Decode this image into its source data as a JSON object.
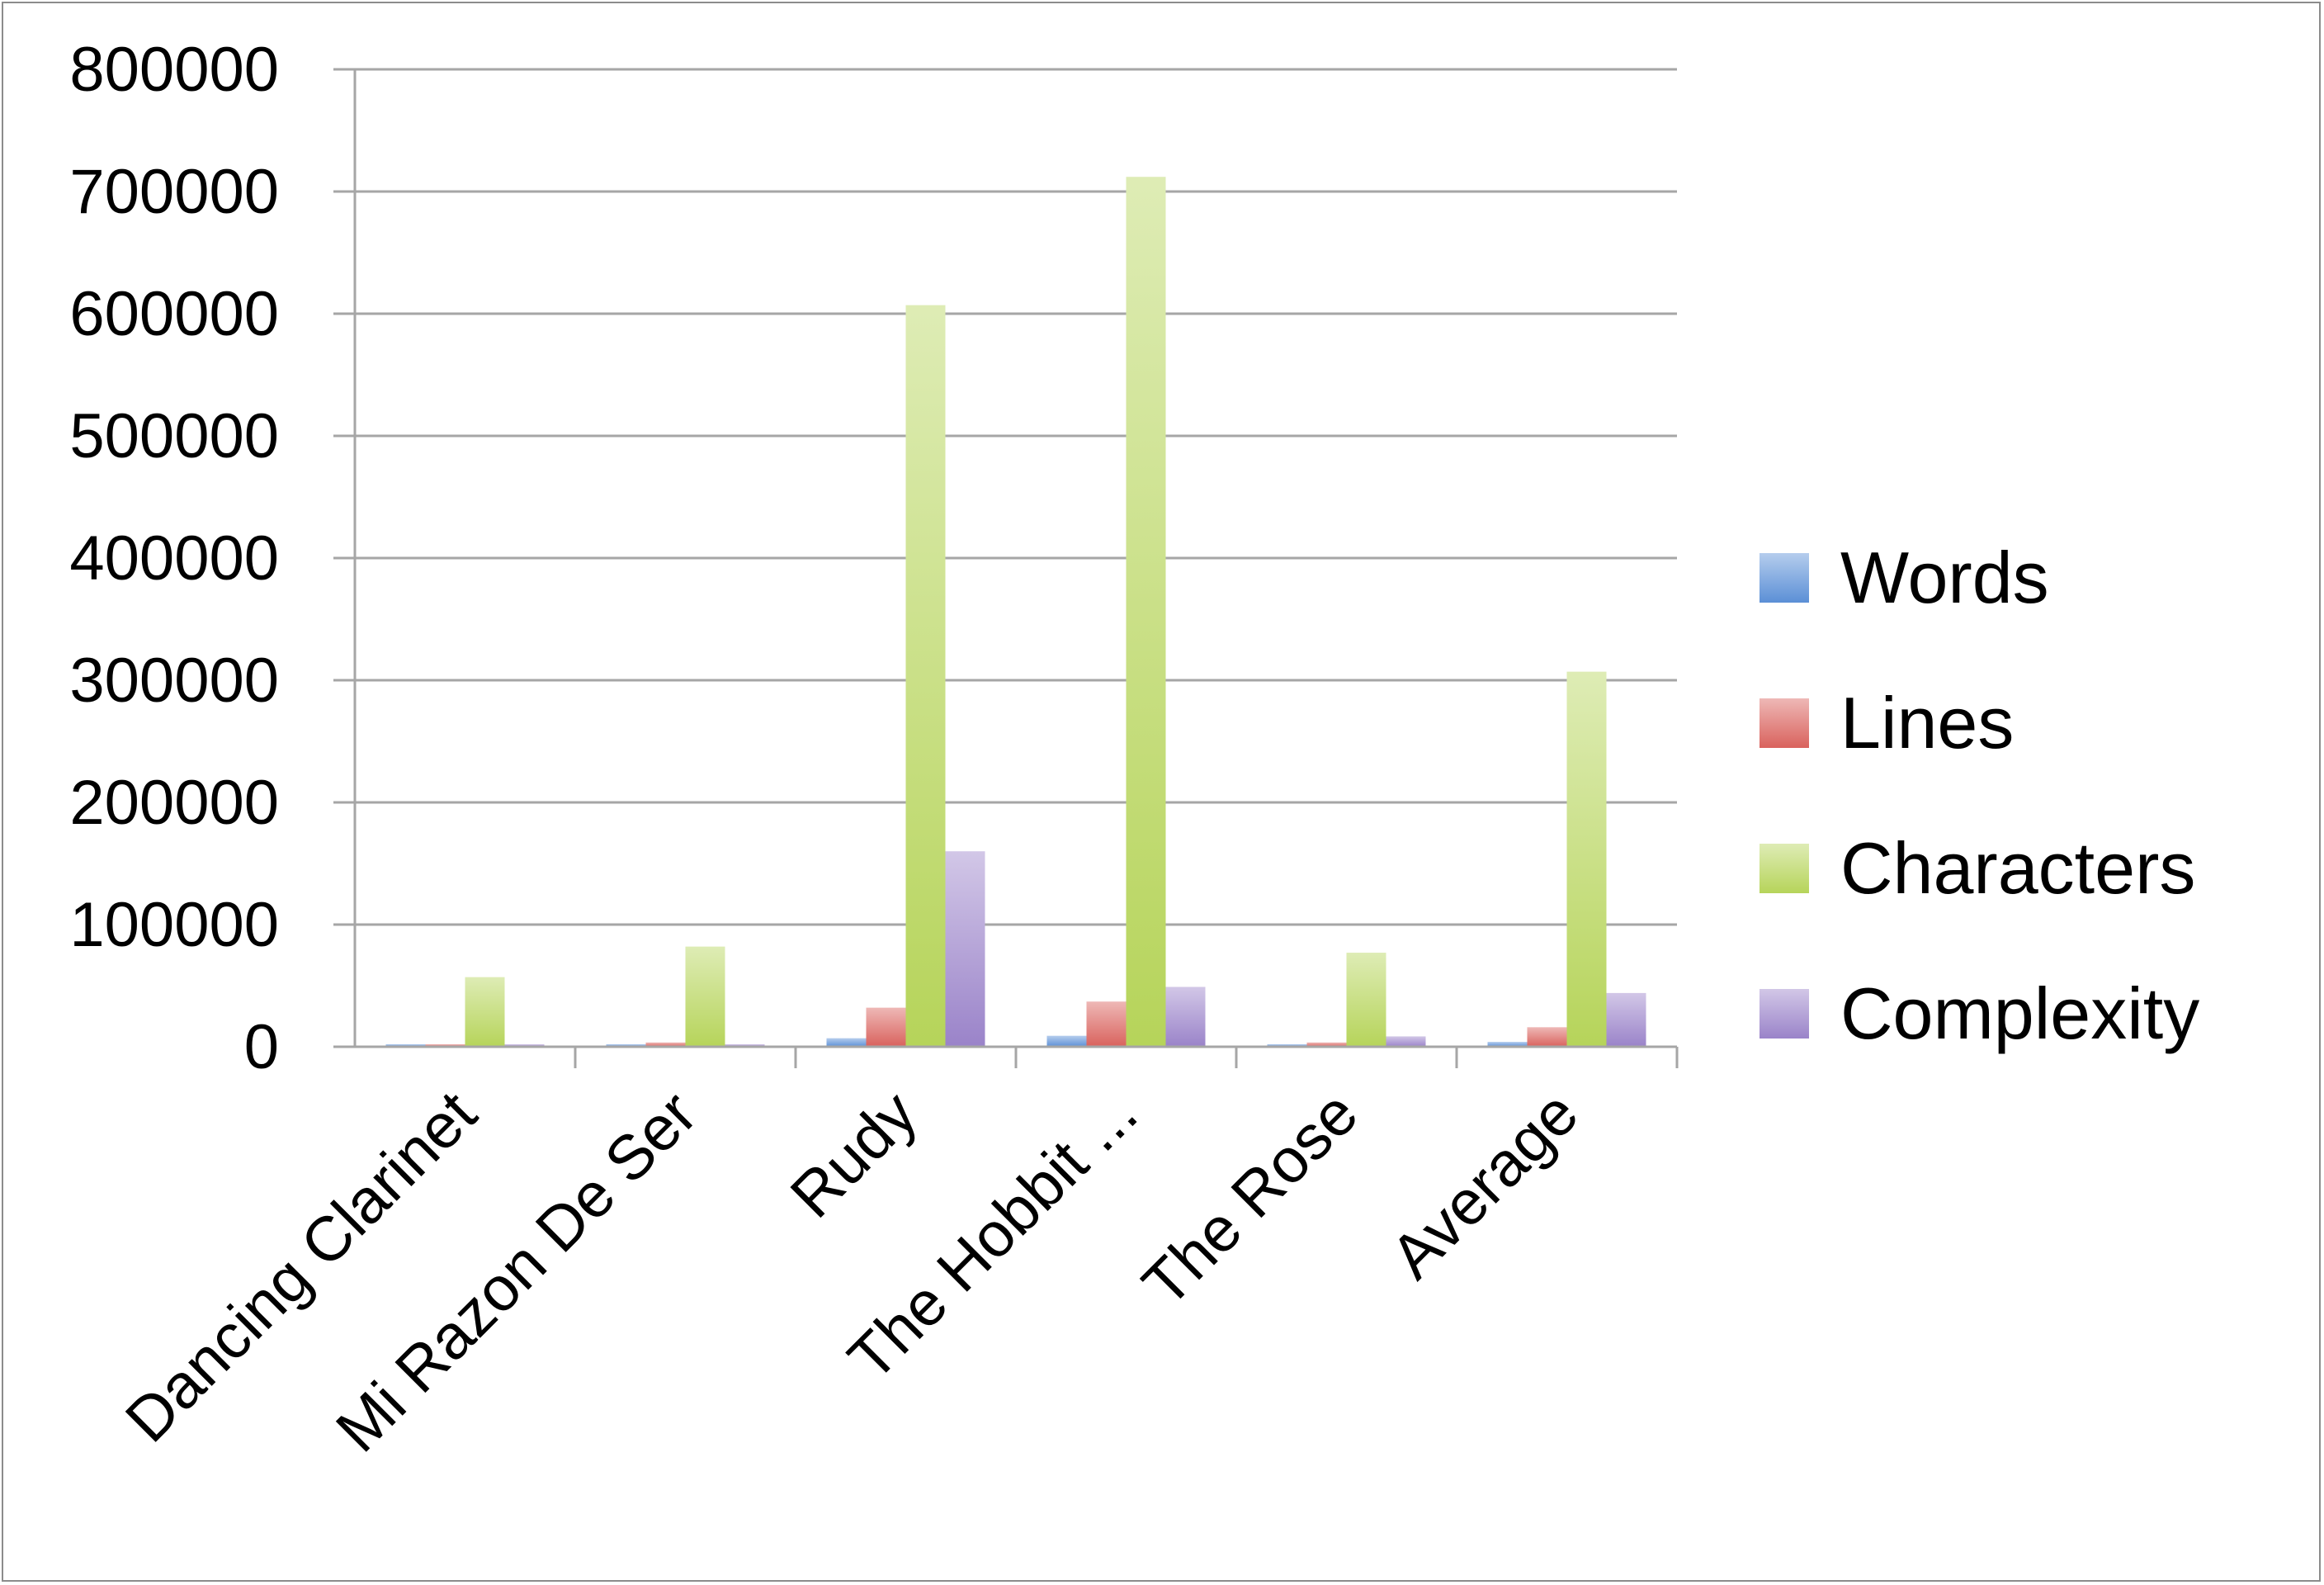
{
  "chart_data": {
    "type": "bar",
    "title": "",
    "xlabel": "",
    "ylabel": "",
    "ylim": [
      0,
      800000
    ],
    "yticks": [
      0,
      100000,
      200000,
      300000,
      400000,
      500000,
      600000,
      700000,
      800000
    ],
    "ytick_labels": [
      "0",
      "100000",
      "200000",
      "300000",
      "400000",
      "500000",
      "600000",
      "700000",
      "800000"
    ],
    "grid": true,
    "legend_position": "right",
    "categories": [
      "Dancing Clarinet",
      "Mi Razon De Ser",
      "Rudy",
      "The Hobbit ...",
      "The Rose",
      "Average"
    ],
    "series": [
      {
        "name": "Words",
        "values": [
          1500,
          1500,
          7000,
          9000,
          1500,
          4000
        ],
        "color": "#5b8fd6"
      },
      {
        "name": "Lines",
        "values": [
          2000,
          3500,
          32000,
          37000,
          3500,
          16000
        ],
        "color": "#d9625d"
      },
      {
        "name": "Characters",
        "values": [
          57000,
          82000,
          607000,
          712000,
          77000,
          307000
        ],
        "color": "#b6d45a"
      },
      {
        "name": "Complexity",
        "values": [
          1500,
          1500,
          160000,
          49000,
          8500,
          44000
        ],
        "color": "#9a83c9"
      }
    ]
  }
}
